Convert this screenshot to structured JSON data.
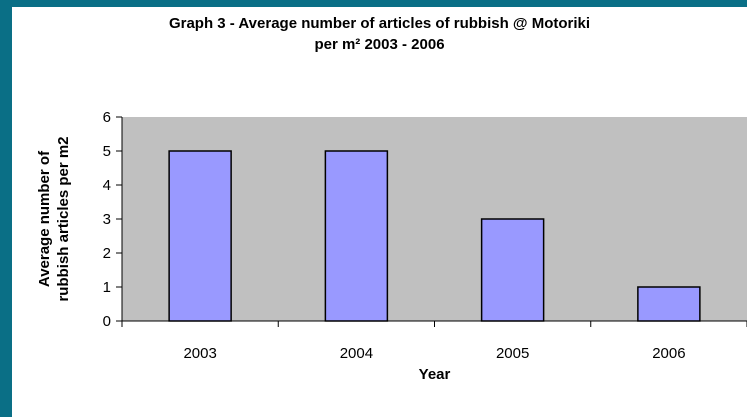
{
  "chart_data": {
    "type": "bar",
    "title_lines": [
      "Graph 3 - Average number of articles of rubbish @ Motoriki",
      "per m²  2003 - 2006"
    ],
    "categories": [
      "2003",
      "2004",
      "2005",
      "2006"
    ],
    "values": [
      5,
      5,
      3,
      1
    ],
    "xlabel": "Year",
    "ylabel_lines": [
      "Average number of",
      "rubbish articles per m2"
    ],
    "ylim": [
      0,
      6
    ],
    "yticks": [
      0,
      1,
      2,
      3,
      4,
      5,
      6
    ],
    "grid": false,
    "legend": "none",
    "colors": {
      "plot_area": "#c0c0c0",
      "bar_fill": "#9999ff",
      "bar_stroke": "#000000",
      "outer_background": "#0a6f86"
    }
  }
}
